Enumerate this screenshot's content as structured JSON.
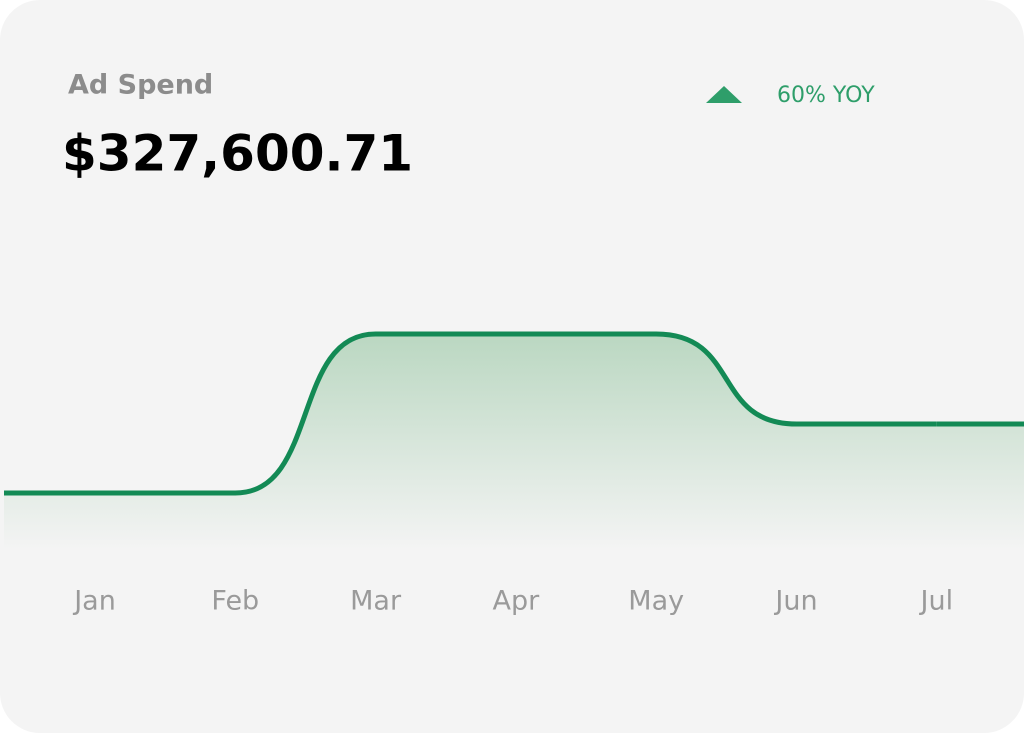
{
  "chart_data": {
    "type": "line",
    "title": "Ad Spend",
    "subtitle": "$327,600.71",
    "annotation": "60% YOY",
    "categories": [
      "Jan",
      "Feb",
      "Mar",
      "Apr",
      "May",
      "Jun",
      "Jul"
    ],
    "values": [
      19,
      19,
      72,
      72,
      72,
      42,
      42
    ],
    "color": "#138a55",
    "ylim": [
      0,
      100
    ]
  }
}
